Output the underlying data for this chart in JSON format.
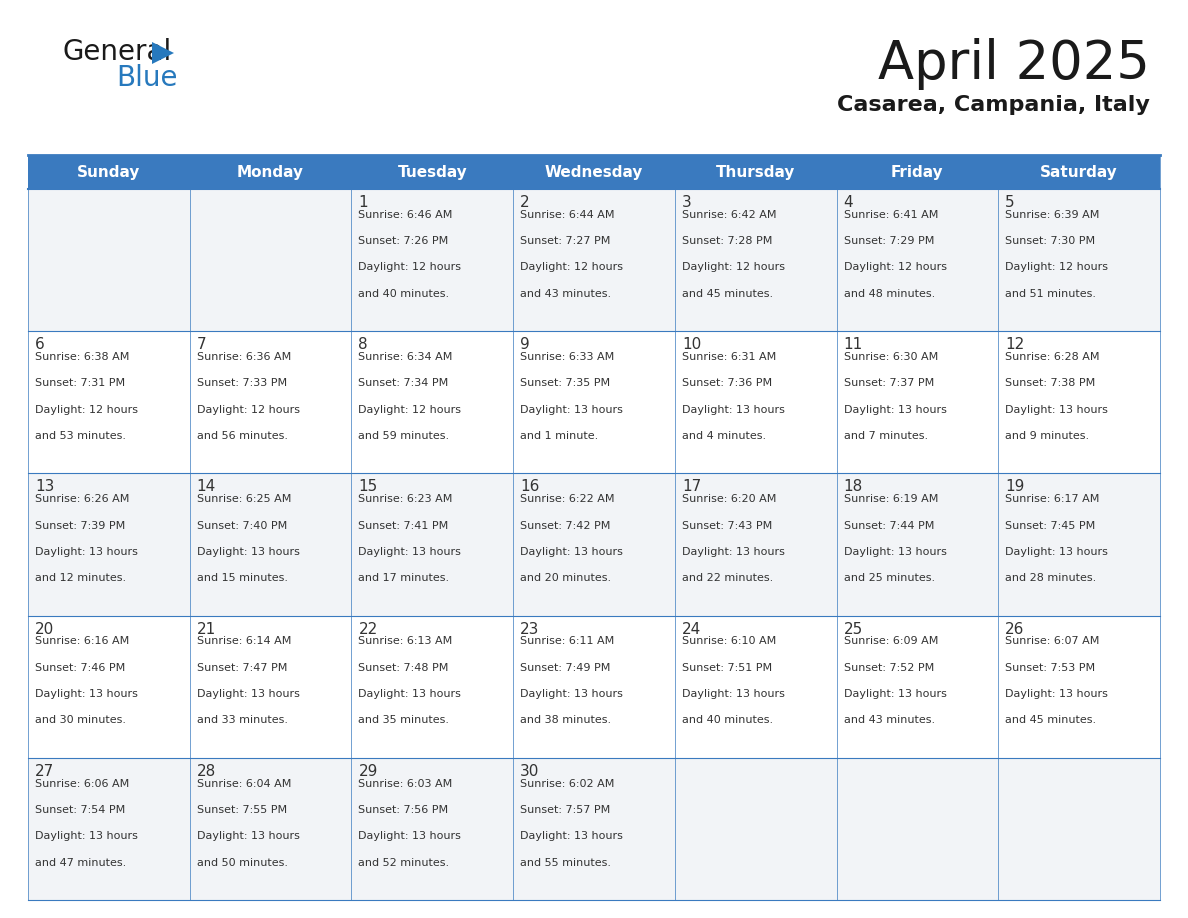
{
  "title": "April 2025",
  "subtitle": "Casarea, Campania, Italy",
  "header_color": "#3a7abf",
  "header_text_color": "#ffffff",
  "cell_bg_even": "#f2f4f7",
  "cell_bg_odd": "#ffffff",
  "border_color": "#3a7abf",
  "text_color": "#333333",
  "day_names": [
    "Sunday",
    "Monday",
    "Tuesday",
    "Wednesday",
    "Thursday",
    "Friday",
    "Saturday"
  ],
  "days": [
    {
      "day": 1,
      "col": 2,
      "row": 0,
      "sunrise": "6:46 AM",
      "sunset": "7:26 PM",
      "daylight_h": "12 hours",
      "daylight_m": "and 40 minutes."
    },
    {
      "day": 2,
      "col": 3,
      "row": 0,
      "sunrise": "6:44 AM",
      "sunset": "7:27 PM",
      "daylight_h": "12 hours",
      "daylight_m": "and 43 minutes."
    },
    {
      "day": 3,
      "col": 4,
      "row": 0,
      "sunrise": "6:42 AM",
      "sunset": "7:28 PM",
      "daylight_h": "12 hours",
      "daylight_m": "and 45 minutes."
    },
    {
      "day": 4,
      "col": 5,
      "row": 0,
      "sunrise": "6:41 AM",
      "sunset": "7:29 PM",
      "daylight_h": "12 hours",
      "daylight_m": "and 48 minutes."
    },
    {
      "day": 5,
      "col": 6,
      "row": 0,
      "sunrise": "6:39 AM",
      "sunset": "7:30 PM",
      "daylight_h": "12 hours",
      "daylight_m": "and 51 minutes."
    },
    {
      "day": 6,
      "col": 0,
      "row": 1,
      "sunrise": "6:38 AM",
      "sunset": "7:31 PM",
      "daylight_h": "12 hours",
      "daylight_m": "and 53 minutes."
    },
    {
      "day": 7,
      "col": 1,
      "row": 1,
      "sunrise": "6:36 AM",
      "sunset": "7:33 PM",
      "daylight_h": "12 hours",
      "daylight_m": "and 56 minutes."
    },
    {
      "day": 8,
      "col": 2,
      "row": 1,
      "sunrise": "6:34 AM",
      "sunset": "7:34 PM",
      "daylight_h": "12 hours",
      "daylight_m": "and 59 minutes."
    },
    {
      "day": 9,
      "col": 3,
      "row": 1,
      "sunrise": "6:33 AM",
      "sunset": "7:35 PM",
      "daylight_h": "13 hours",
      "daylight_m": "and 1 minute."
    },
    {
      "day": 10,
      "col": 4,
      "row": 1,
      "sunrise": "6:31 AM",
      "sunset": "7:36 PM",
      "daylight_h": "13 hours",
      "daylight_m": "and 4 minutes."
    },
    {
      "day": 11,
      "col": 5,
      "row": 1,
      "sunrise": "6:30 AM",
      "sunset": "7:37 PM",
      "daylight_h": "13 hours",
      "daylight_m": "and 7 minutes."
    },
    {
      "day": 12,
      "col": 6,
      "row": 1,
      "sunrise": "6:28 AM",
      "sunset": "7:38 PM",
      "daylight_h": "13 hours",
      "daylight_m": "and 9 minutes."
    },
    {
      "day": 13,
      "col": 0,
      "row": 2,
      "sunrise": "6:26 AM",
      "sunset": "7:39 PM",
      "daylight_h": "13 hours",
      "daylight_m": "and 12 minutes."
    },
    {
      "day": 14,
      "col": 1,
      "row": 2,
      "sunrise": "6:25 AM",
      "sunset": "7:40 PM",
      "daylight_h": "13 hours",
      "daylight_m": "and 15 minutes."
    },
    {
      "day": 15,
      "col": 2,
      "row": 2,
      "sunrise": "6:23 AM",
      "sunset": "7:41 PM",
      "daylight_h": "13 hours",
      "daylight_m": "and 17 minutes."
    },
    {
      "day": 16,
      "col": 3,
      "row": 2,
      "sunrise": "6:22 AM",
      "sunset": "7:42 PM",
      "daylight_h": "13 hours",
      "daylight_m": "and 20 minutes."
    },
    {
      "day": 17,
      "col": 4,
      "row": 2,
      "sunrise": "6:20 AM",
      "sunset": "7:43 PM",
      "daylight_h": "13 hours",
      "daylight_m": "and 22 minutes."
    },
    {
      "day": 18,
      "col": 5,
      "row": 2,
      "sunrise": "6:19 AM",
      "sunset": "7:44 PM",
      "daylight_h": "13 hours",
      "daylight_m": "and 25 minutes."
    },
    {
      "day": 19,
      "col": 6,
      "row": 2,
      "sunrise": "6:17 AM",
      "sunset": "7:45 PM",
      "daylight_h": "13 hours",
      "daylight_m": "and 28 minutes."
    },
    {
      "day": 20,
      "col": 0,
      "row": 3,
      "sunrise": "6:16 AM",
      "sunset": "7:46 PM",
      "daylight_h": "13 hours",
      "daylight_m": "and 30 minutes."
    },
    {
      "day": 21,
      "col": 1,
      "row": 3,
      "sunrise": "6:14 AM",
      "sunset": "7:47 PM",
      "daylight_h": "13 hours",
      "daylight_m": "and 33 minutes."
    },
    {
      "day": 22,
      "col": 2,
      "row": 3,
      "sunrise": "6:13 AM",
      "sunset": "7:48 PM",
      "daylight_h": "13 hours",
      "daylight_m": "and 35 minutes."
    },
    {
      "day": 23,
      "col": 3,
      "row": 3,
      "sunrise": "6:11 AM",
      "sunset": "7:49 PM",
      "daylight_h": "13 hours",
      "daylight_m": "and 38 minutes."
    },
    {
      "day": 24,
      "col": 4,
      "row": 3,
      "sunrise": "6:10 AM",
      "sunset": "7:51 PM",
      "daylight_h": "13 hours",
      "daylight_m": "and 40 minutes."
    },
    {
      "day": 25,
      "col": 5,
      "row": 3,
      "sunrise": "6:09 AM",
      "sunset": "7:52 PM",
      "daylight_h": "13 hours",
      "daylight_m": "and 43 minutes."
    },
    {
      "day": 26,
      "col": 6,
      "row": 3,
      "sunrise": "6:07 AM",
      "sunset": "7:53 PM",
      "daylight_h": "13 hours",
      "daylight_m": "and 45 minutes."
    },
    {
      "day": 27,
      "col": 0,
      "row": 4,
      "sunrise": "6:06 AM",
      "sunset": "7:54 PM",
      "daylight_h": "13 hours",
      "daylight_m": "and 47 minutes."
    },
    {
      "day": 28,
      "col": 1,
      "row": 4,
      "sunrise": "6:04 AM",
      "sunset": "7:55 PM",
      "daylight_h": "13 hours",
      "daylight_m": "and 50 minutes."
    },
    {
      "day": 29,
      "col": 2,
      "row": 4,
      "sunrise": "6:03 AM",
      "sunset": "7:56 PM",
      "daylight_h": "13 hours",
      "daylight_m": "and 52 minutes."
    },
    {
      "day": 30,
      "col": 3,
      "row": 4,
      "sunrise": "6:02 AM",
      "sunset": "7:57 PM",
      "daylight_h": "13 hours",
      "daylight_m": "and 55 minutes."
    }
  ],
  "logo_color1": "#1a1a1a",
  "logo_color2": "#2779bd",
  "logo_triangle_color": "#2779bd",
  "title_fontsize": 38,
  "subtitle_fontsize": 16,
  "header_fontsize": 11,
  "day_num_fontsize": 11,
  "cell_text_fontsize": 8
}
